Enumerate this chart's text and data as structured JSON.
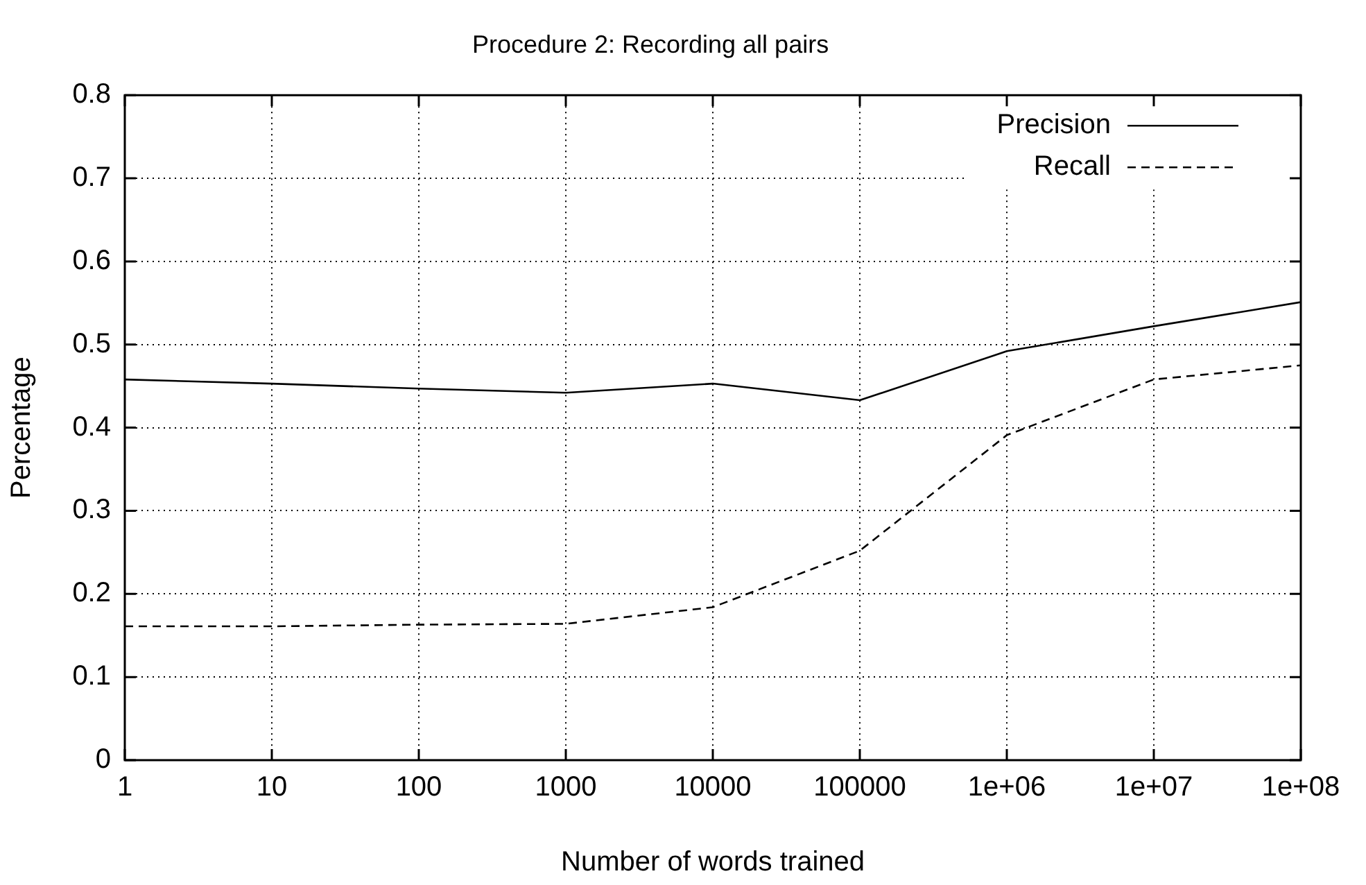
{
  "chart_data": {
    "type": "line",
    "title": "Procedure 2: Recording all pairs",
    "xlabel": "Number of words trained",
    "ylabel": "Percentage",
    "x": [
      1,
      10,
      100,
      1000,
      10000,
      100000,
      1000000,
      10000000,
      100000000
    ],
    "series": [
      {
        "name": "Precision",
        "color": "#000000",
        "line_style": "solid",
        "values": [
          0.458,
          0.453,
          0.447,
          0.442,
          0.453,
          0.433,
          0.492,
          0.522,
          0.551
        ]
      },
      {
        "name": "Recall",
        "color": "#000000",
        "line_style": "dashed",
        "values": [
          0.161,
          0.161,
          0.163,
          0.164,
          0.184,
          0.252,
          0.391,
          0.458,
          0.475
        ]
      }
    ],
    "log": "x",
    "xlim": [
      1,
      100000000
    ],
    "xticks": [
      1,
      10,
      100,
      1000,
      10000,
      100000,
      {
        "value": 1000000,
        "label": "1e+06"
      },
      {
        "value": 10000000,
        "label": "1e+07"
      },
      {
        "value": 100000000,
        "label": "1e+08"
      }
    ],
    "ylim": [
      0,
      0.8
    ],
    "yticks": [
      0,
      0.1,
      0.2,
      0.3,
      0.4,
      0.5,
      0.6,
      0.7,
      0.8
    ],
    "grid": true,
    "legend": "top right",
    "marker": "none"
  }
}
